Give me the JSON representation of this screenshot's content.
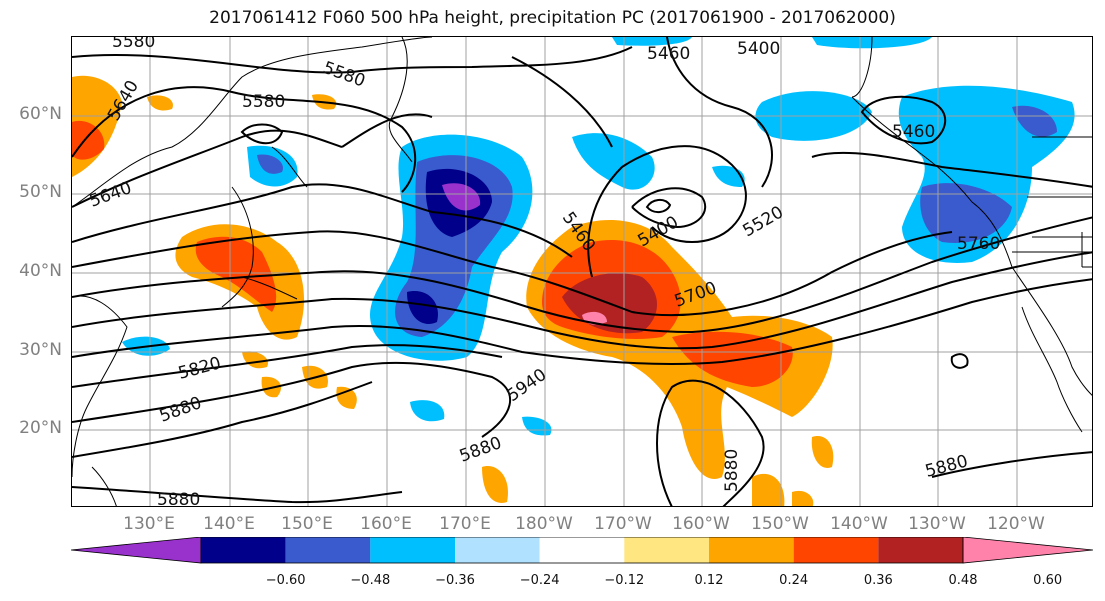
{
  "title": "2017061412 F060 500 hPa height, precipitation PC (2017061900 - 2017062000)",
  "latitude_labels": [
    "60°N",
    "50°N",
    "40°N",
    "30°N",
    "20°N"
  ],
  "longitude_labels": [
    "130°E",
    "140°E",
    "150°E",
    "160°E",
    "170°E",
    "180°W",
    "170°W",
    "160°W",
    "150°W",
    "140°W",
    "130°W",
    "120°W"
  ],
  "contour_labels": [
    "5580",
    "5640",
    "5580",
    "5580",
    "5460",
    "5400",
    "5640",
    "5460",
    "5400",
    "5520",
    "5460",
    "5760",
    "5700",
    "5820",
    "5940",
    "5880",
    "5880",
    "5880",
    "5880",
    "5880"
  ],
  "colorbar": {
    "tick_labels": [
      "−0.60",
      "−0.48",
      "−0.36",
      "−0.24",
      "−0.12",
      "0.12",
      "0.24",
      "0.36",
      "0.48",
      "0.60"
    ],
    "colors": [
      "#9932cc",
      "#00008b",
      "#3a5bcd",
      "#00bfff",
      "#b0e2ff",
      "#ffffff",
      "#ffe680",
      "#ffa500",
      "#ff4500",
      "#b22222",
      "#ff82ab"
    ]
  }
}
